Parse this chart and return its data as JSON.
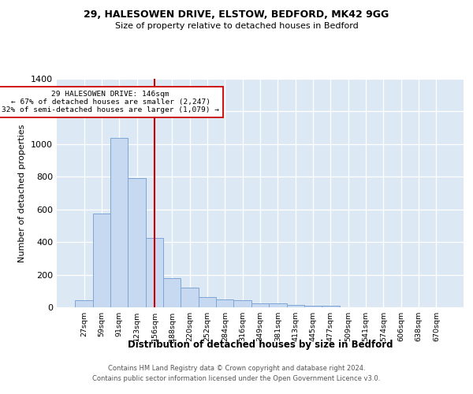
{
  "title_line1": "29, HALESOWEN DRIVE, ELSTOW, BEDFORD, MK42 9GG",
  "title_line2": "Size of property relative to detached houses in Bedford",
  "xlabel": "Distribution of detached houses by size in Bedford",
  "ylabel": "Number of detached properties",
  "categories": [
    "27sqm",
    "59sqm",
    "91sqm",
    "123sqm",
    "156sqm",
    "188sqm",
    "220sqm",
    "252sqm",
    "284sqm",
    "316sqm",
    "349sqm",
    "381sqm",
    "413sqm",
    "445sqm",
    "477sqm",
    "509sqm",
    "541sqm",
    "574sqm",
    "606sqm",
    "638sqm",
    "670sqm"
  ],
  "values": [
    45,
    575,
    1040,
    790,
    425,
    180,
    122,
    65,
    48,
    42,
    25,
    22,
    15,
    10,
    10,
    0,
    0,
    0,
    0,
    0,
    0
  ],
  "bar_color": "#c6d9f0",
  "bar_edge_color": "#7da6d6",
  "vline_x_idx": 4,
  "vline_color": "#cc0000",
  "annotation_text": "29 HALESOWEN DRIVE: 146sqm\n← 67% of detached houses are smaller (2,247)\n32% of semi-detached houses are larger (1,079) →",
  "annotation_box_color": "white",
  "annotation_box_edge": "#cc0000",
  "ylim": [
    0,
    1400
  ],
  "yticks": [
    0,
    200,
    400,
    600,
    800,
    1000,
    1200,
    1400
  ],
  "background_color": "#dce9f5",
  "grid_color": "white",
  "footer_line1": "Contains HM Land Registry data © Crown copyright and database right 2024.",
  "footer_line2": "Contains public sector information licensed under the Open Government Licence v3.0."
}
